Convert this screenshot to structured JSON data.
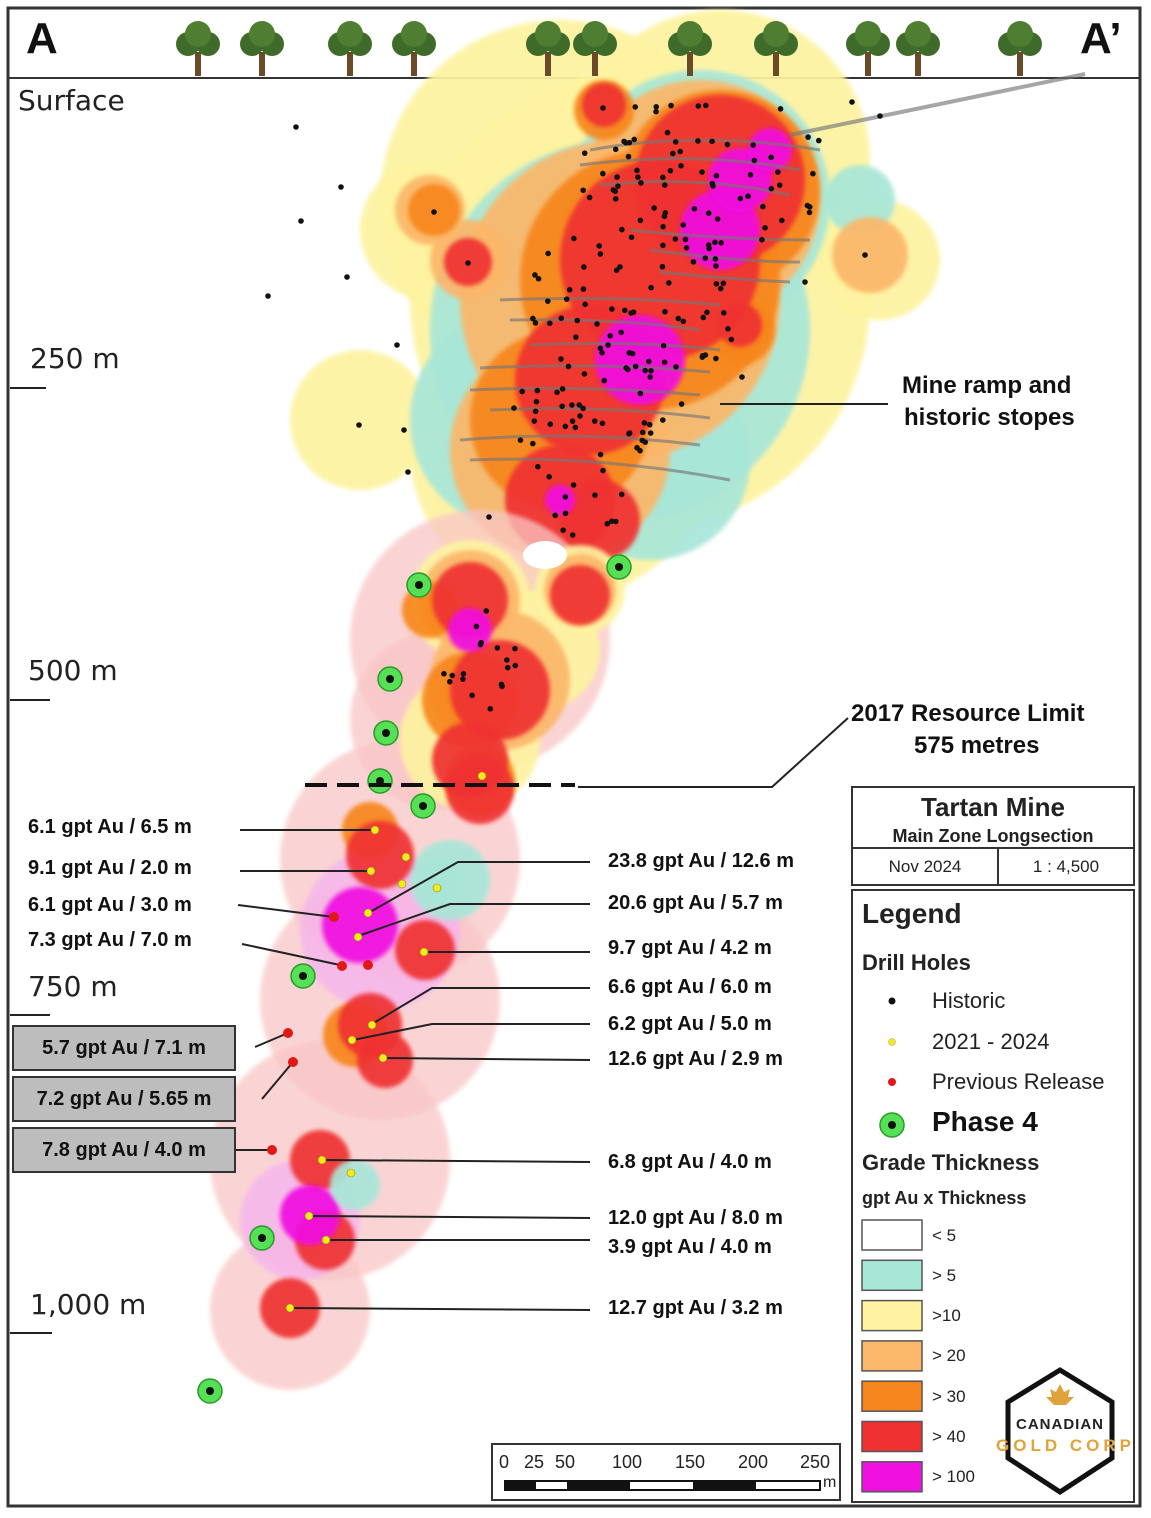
{
  "section": {
    "left_label": "A",
    "right_label": "A’",
    "surface_label": "Surface",
    "depth_labels": [
      "250 m",
      "500 m",
      "750 m",
      "1,000 m"
    ],
    "mine_ramp_label": [
      "Mine ramp and",
      "historic stopes"
    ],
    "resource_limit_label": [
      "2017 Resource Limit",
      "575 metres"
    ]
  },
  "intercepts_left": [
    "6.1 gpt Au / 6.5 m",
    "9.1 gpt Au / 2.0 m",
    "6.1 gpt Au / 3.0 m",
    "7.3 gpt Au / 7.0 m"
  ],
  "intercepts_boxed": [
    "5.7 gpt Au / 7.1 m",
    "7.2 gpt Au / 5.65 m",
    "7.8 gpt Au / 4.0 m"
  ],
  "intercepts_right": [
    "23.8 gpt Au / 12.6 m",
    "20.6 gpt Au / 5.7 m",
    "9.7 gpt Au / 4.2 m",
    "6.6 gpt Au / 6.0 m",
    "6.2 gpt Au / 5.0 m",
    "12.6 gpt Au / 2.9 m",
    "6.8 gpt Au / 4.0 m",
    "12.0 gpt Au / 8.0 m",
    "3.9 gpt Au / 4.0 m",
    "12.7 gpt Au / 3.2 m"
  ],
  "title_box": {
    "title": "Tartan Mine",
    "subtitle": "Main Zone Longsection",
    "date": "Nov 2024",
    "scale": "1 : 4,500"
  },
  "legend": {
    "title": "Legend",
    "drill_holes_title": "Drill Holes",
    "drill_holes": [
      {
        "label": "Historic",
        "color": "#111111"
      },
      {
        "label": "2021 - 2024",
        "color": "#f2ea1a"
      },
      {
        "label": "Previous Release",
        "color": "#e01818"
      },
      {
        "label": "Phase 4",
        "color": "#55e055"
      }
    ],
    "grade_title": "Grade Thickness",
    "grade_subtitle": "gpt Au x Thickness",
    "grades": [
      {
        "label": "< 5",
        "color": "#ffffff"
      },
      {
        "label": "> 5",
        "color": "#a8e6d8"
      },
      {
        "label": ">10",
        "color": "#fdf3a0"
      },
      {
        "label": "> 20",
        "color": "#fbb76a"
      },
      {
        "label": "> 30",
        "color": "#f7861e"
      },
      {
        "label": "> 40",
        "color": "#ef3030"
      },
      {
        "label": "> 100",
        "color": "#f010e0"
      }
    ]
  },
  "scale_bar": {
    "ticks": [
      "0",
      "25",
      "50",
      "100",
      "150",
      "200",
      "250"
    ],
    "unit": "m"
  },
  "logo": {
    "line1": "CANADIAN",
    "line2": "GOLD CORP"
  }
}
